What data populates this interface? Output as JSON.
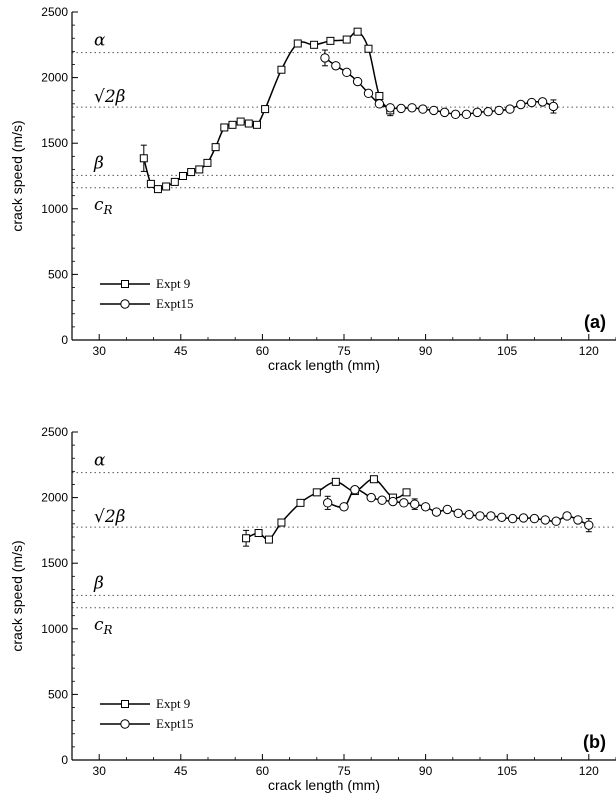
{
  "chart_data": [
    {
      "type": "line",
      "panel_label": "(a)",
      "xlabel": "crack length (mm)",
      "ylabel": "crack speed (m/s)",
      "xlim": [
        25,
        125
      ],
      "ylim": [
        0,
        2500
      ],
      "xticks": [
        30,
        45,
        60,
        75,
        90,
        105,
        120
      ],
      "yticks": [
        0,
        500,
        1000,
        1500,
        2000,
        2500
      ],
      "grid": false,
      "legend": "bottom-left",
      "reference_lines": [
        {
          "label": "α",
          "y": 2190
        },
        {
          "label": "√2β",
          "y": 1775
        },
        {
          "label": "β",
          "y": 1255
        },
        {
          "label": "c",
          "sub": "R",
          "y": 1160
        }
      ],
      "series": [
        {
          "name": "Expt 9",
          "marker": "square",
          "x": [
            38.2,
            39.5,
            40.8,
            42.3,
            43.9,
            45.4,
            46.9,
            48.4,
            49.9,
            51.4,
            53.0,
            54.5,
            56.0,
            57.5,
            59.0,
            60.5,
            63.5,
            66.5,
            69.5,
            72.5,
            75.5,
            77.5,
            79.5,
            81.5,
            83.5
          ],
          "y": [
            1385,
            1190,
            1150,
            1170,
            1205,
            1250,
            1280,
            1300,
            1350,
            1470,
            1620,
            1640,
            1665,
            1650,
            1640,
            1760,
            2060,
            2260,
            2250,
            2280,
            2290,
            2350,
            2220,
            1860,
            1750
          ],
          "error_bars": [
            {
              "x": 38.2,
              "y": 1385,
              "err": 100
            },
            {
              "x": 83.5,
              "y": 1750,
              "err": 40
            }
          ]
        },
        {
          "name": "Expt15",
          "marker": "circle",
          "x": [
            71.5,
            73.5,
            75.5,
            77.5,
            79.5,
            81.5,
            83.5,
            85.5,
            87.5,
            89.5,
            91.5,
            93.5,
            95.5,
            97.5,
            99.5,
            101.5,
            103.5,
            105.5,
            107.5,
            109.5,
            111.5,
            113.5
          ],
          "y": [
            2150,
            2090,
            2040,
            1970,
            1880,
            1800,
            1770,
            1765,
            1770,
            1760,
            1750,
            1735,
            1720,
            1720,
            1735,
            1740,
            1750,
            1760,
            1795,
            1810,
            1815,
            1780
          ],
          "error_bars": [
            {
              "x": 71.5,
              "y": 2150,
              "err": 60
            },
            {
              "x": 113.5,
              "y": 1780,
              "err": 50
            }
          ]
        }
      ]
    },
    {
      "type": "line",
      "panel_label": "(b)",
      "xlabel": "crack length (mm)",
      "ylabel": "crack speed (m/s)",
      "xlim": [
        25,
        125
      ],
      "ylim": [
        0,
        2500
      ],
      "xticks": [
        30,
        45,
        60,
        75,
        90,
        105,
        120
      ],
      "yticks": [
        0,
        500,
        1000,
        1500,
        2000,
        2500
      ],
      "grid": false,
      "legend": "bottom-left",
      "reference_lines": [
        {
          "label": "α",
          "y": 2190
        },
        {
          "label": "√2β",
          "y": 1775
        },
        {
          "label": "β",
          "y": 1255
        },
        {
          "label": "c",
          "sub": "R",
          "y": 1160
        }
      ],
      "series": [
        {
          "name": "Expt 9",
          "marker": "square",
          "x": [
            57,
            59.3,
            61.2,
            63.5,
            67,
            70,
            73.5,
            77,
            80.5,
            84,
            86.5
          ],
          "y": [
            1690,
            1730,
            1680,
            1810,
            1960,
            2040,
            2120,
            2050,
            2140,
            2000,
            2040
          ],
          "error_bars": [
            {
              "x": 57,
              "y": 1690,
              "err": 60
            }
          ]
        },
        {
          "name": "Expt15",
          "marker": "circle",
          "x": [
            72,
            75,
            77,
            80,
            82,
            84,
            86,
            88,
            90,
            92,
            94,
            96,
            98,
            100,
            102,
            104,
            106,
            108,
            110,
            112,
            114,
            116,
            118,
            120
          ],
          "y": [
            1960,
            1930,
            2060,
            2000,
            1980,
            1970,
            1960,
            1950,
            1930,
            1890,
            1910,
            1880,
            1870,
            1860,
            1860,
            1850,
            1840,
            1845,
            1840,
            1830,
            1820,
            1860,
            1830,
            1790
          ],
          "error_bars": [
            {
              "x": 72,
              "y": 1960,
              "err": 50
            },
            {
              "x": 88,
              "y": 1950,
              "err": 40
            },
            {
              "x": 120,
              "y": 1790,
              "err": 50
            }
          ]
        }
      ]
    }
  ]
}
